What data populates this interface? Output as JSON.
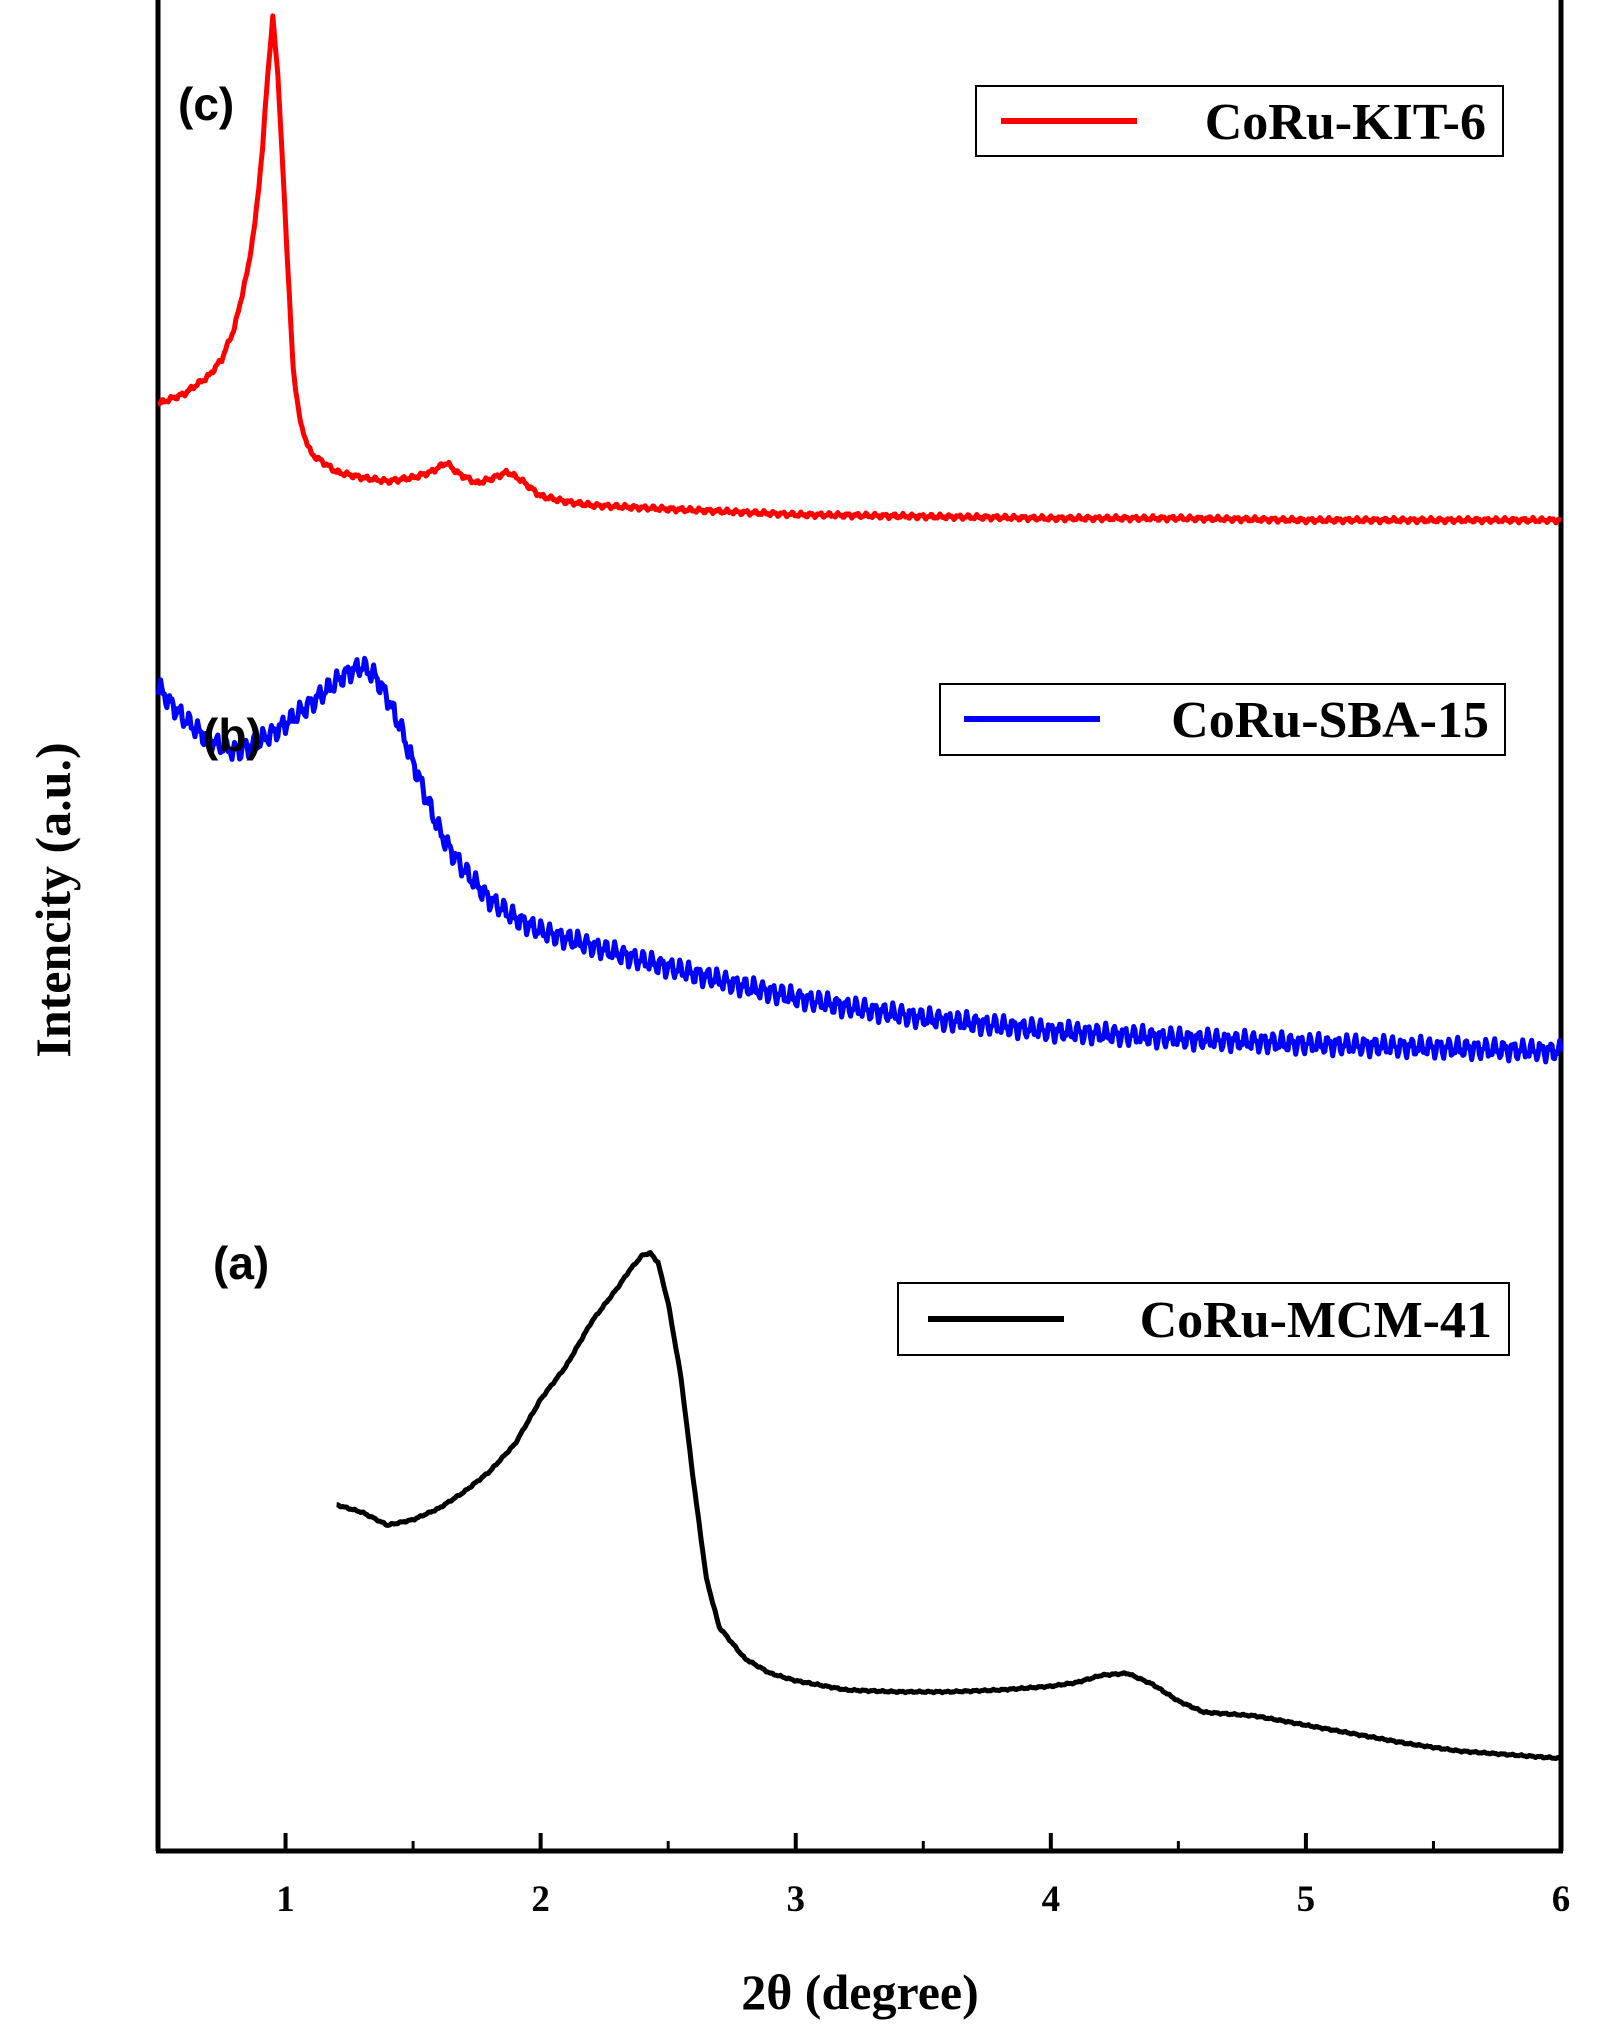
{
  "chart_data": {
    "type": "line",
    "title": "",
    "xlabel": "2θ (degree)",
    "ylabel": "Intencity (a.u.)",
    "xlim": [
      0.5,
      6
    ],
    "ylim": [
      0,
      1
    ],
    "x_ticks": [
      1,
      2,
      3,
      4,
      5,
      6
    ],
    "x_tick_labels": [
      "1",
      "2",
      "3",
      "4",
      "5",
      "6"
    ],
    "grid": false,
    "series": [
      {
        "name": "CoRu-KIT-6",
        "panel_label": "(c)",
        "color": "#ff0000",
        "x": [
          0.5,
          0.6,
          0.7,
          0.75,
          0.8,
          0.85,
          0.88,
          0.91,
          0.93,
          0.95,
          0.97,
          1.0,
          1.03,
          1.06,
          1.1,
          1.2,
          1.3,
          1.4,
          1.5,
          1.57,
          1.63,
          1.68,
          1.75,
          1.8,
          1.87,
          1.92,
          2.0,
          2.1,
          2.2,
          2.5,
          3.0,
          3.5,
          4.0,
          4.5,
          5.0,
          5.5,
          6.0
        ],
        "y": [
          0.782,
          0.787,
          0.797,
          0.806,
          0.823,
          0.853,
          0.879,
          0.92,
          0.96,
          0.99,
          0.96,
          0.88,
          0.8,
          0.77,
          0.755,
          0.745,
          0.742,
          0.74,
          0.742,
          0.745,
          0.75,
          0.744,
          0.739,
          0.741,
          0.745,
          0.741,
          0.732,
          0.729,
          0.727,
          0.725,
          0.722,
          0.721,
          0.72,
          0.72,
          0.719,
          0.719,
          0.719
        ]
      },
      {
        "name": "CoRu-SBA-15",
        "panel_label": "(b)",
        "color": "#0000ff",
        "x": [
          0.5,
          0.55,
          0.6,
          0.7,
          0.8,
          0.85,
          0.9,
          0.95,
          1.0,
          1.1,
          1.2,
          1.25,
          1.3,
          1.35,
          1.4,
          1.45,
          1.5,
          1.55,
          1.6,
          1.65,
          1.7,
          1.8,
          1.9,
          2.0,
          2.2,
          2.4,
          2.6,
          2.8,
          3.0,
          3.2,
          3.5,
          4.0,
          4.5,
          5.0,
          5.5,
          6.0
        ],
        "y": [
          0.629,
          0.62,
          0.612,
          0.6,
          0.594,
          0.596,
          0.6,
          0.604,
          0.609,
          0.62,
          0.632,
          0.637,
          0.64,
          0.635,
          0.623,
          0.607,
          0.588,
          0.57,
          0.552,
          0.54,
          0.53,
          0.514,
          0.504,
          0.497,
          0.489,
          0.481,
          0.474,
          0.467,
          0.461,
          0.456,
          0.45,
          0.443,
          0.439,
          0.436,
          0.434,
          0.432
        ]
      },
      {
        "name": "CoRu-MCM-41",
        "panel_label": "(a)",
        "color": "#000000",
        "x": [
          1.2,
          1.3,
          1.4,
          1.5,
          1.6,
          1.7,
          1.8,
          1.9,
          2.0,
          2.1,
          2.2,
          2.3,
          2.35,
          2.4,
          2.43,
          2.46,
          2.5,
          2.55,
          2.6,
          2.65,
          2.7,
          2.8,
          2.9,
          3.0,
          3.2,
          3.4,
          3.6,
          3.8,
          4.0,
          4.1,
          4.2,
          4.3,
          4.4,
          4.5,
          4.6,
          4.8,
          5.0,
          5.2,
          5.4,
          5.6,
          5.8,
          6.0
        ],
        "y": [
          0.187,
          0.183,
          0.176,
          0.179,
          0.185,
          0.194,
          0.205,
          0.22,
          0.244,
          0.262,
          0.286,
          0.304,
          0.314,
          0.322,
          0.323,
          0.318,
          0.296,
          0.256,
          0.199,
          0.147,
          0.121,
          0.104,
          0.096,
          0.092,
          0.087,
          0.086,
          0.086,
          0.087,
          0.089,
          0.091,
          0.095,
          0.096,
          0.09,
          0.081,
          0.075,
          0.073,
          0.068,
          0.063,
          0.058,
          0.054,
          0.052,
          0.05
        ]
      }
    ],
    "legends": [
      {
        "label": "CoRu-KIT-6",
        "placement": "top-right"
      },
      {
        "label": "CoRu-SBA-15",
        "placement": "middle-right"
      },
      {
        "label": "CoRu-MCM-41",
        "placement": "lower-right"
      }
    ]
  }
}
